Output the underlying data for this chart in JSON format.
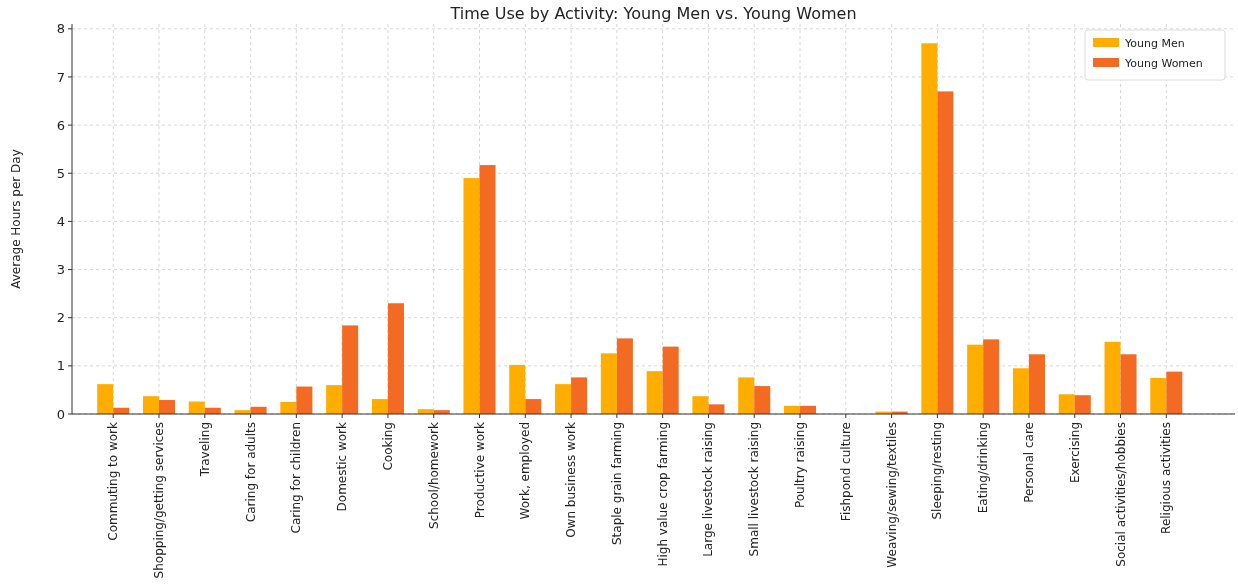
{
  "chart_data": {
    "type": "bar",
    "title": "Time Use by Activity: Young Men vs. Young Women",
    "ylabel": "Average Hours per Day",
    "categories": [
      "Commuting to work",
      "Shopping/getting services",
      "Traveling",
      "Caring for adults",
      "Caring for children",
      "Domestic work",
      "Cooking",
      "School/homework",
      "Productive work",
      "Work, employed",
      "Own business work",
      "Staple grain farming",
      "High value crop farming",
      "Large livestock raising",
      "Small livestock raising",
      "Poultry raising",
      "Fishpond culture",
      "Weaving/sewing/textiles",
      "Sleeping/resting",
      "Eating/drinking",
      "Personal care",
      "Exercising",
      "Social activities/hobbies",
      "Religious activities"
    ],
    "series": [
      {
        "name": "Young Men",
        "color": "#ffae00",
        "values": [
          0.62,
          0.37,
          0.26,
          0.08,
          0.25,
          0.6,
          0.31,
          0.1,
          4.9,
          1.02,
          0.62,
          1.26,
          0.89,
          0.37,
          0.76,
          0.17,
          0,
          0.05,
          7.7,
          1.44,
          0.95,
          0.41,
          1.5,
          0.75
        ]
      },
      {
        "name": "Young Women",
        "color": "#f36b22",
        "values": [
          0.13,
          0.29,
          0.13,
          0.15,
          0.57,
          1.84,
          2.3,
          0.08,
          5.17,
          0.31,
          0.76,
          1.57,
          1.4,
          0.2,
          0.58,
          0.17,
          0,
          0.05,
          6.7,
          1.55,
          1.24,
          0.39,
          1.24,
          0.88
        ]
      }
    ],
    "ylim": [
      0,
      8.1
    ],
    "yticks": [
      0,
      1,
      2,
      3,
      4,
      5,
      6,
      7,
      8
    ],
    "grid": true,
    "legend": "top right"
  }
}
